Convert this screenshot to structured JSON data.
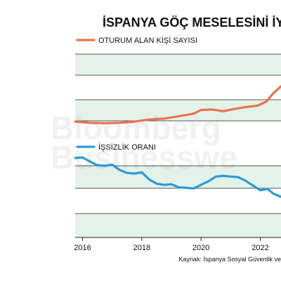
{
  "chart_data": {
    "type": "line",
    "title": "İSPANYA GÖÇ MESELESİNİ İY",
    "source": "Kaynak: İspanya Sosyal Güvenlik ve",
    "watermark": [
      "Bloomberg",
      "Businesswe"
    ],
    "xlim": [
      2015.75,
      2022.7
    ],
    "x_ticks": [
      2016,
      2018,
      2020,
      2022
    ],
    "x_tick_labels": [
      "2016",
      "2018",
      "2020",
      "2022"
    ],
    "panels": [
      {
        "id": "residents",
        "legend": "OTURUM ALAN KİŞİ SAYISI",
        "color": "#E8744B",
        "x": [
          2015.75,
          2016.25,
          2016.75,
          2017.25,
          2017.75,
          2018.25,
          2018.75,
          2019.25,
          2019.75,
          2020.0,
          2020.4,
          2020.75,
          2021.1,
          2021.5,
          2021.9,
          2022.2,
          2022.45,
          2022.7
        ],
        "y": [
          0.5,
          0.2,
          0.1,
          0.2,
          0.5,
          1.0,
          1.2,
          1.8,
          2.4,
          3.3,
          3.4,
          3.0,
          3.5,
          4.0,
          4.3,
          5.3,
          7.4,
          9.0
        ]
      },
      {
        "id": "unemployment",
        "legend": "İŞSİZLİK ORANI",
        "color": "#2C9AD6",
        "x": [
          2015.75,
          2016.0,
          2016.25,
          2016.5,
          2016.75,
          2017.0,
          2017.25,
          2017.5,
          2017.75,
          2018.0,
          2018.25,
          2018.5,
          2018.75,
          2019.0,
          2019.25,
          2019.5,
          2019.75,
          2020.0,
          2020.25,
          2020.5,
          2020.75,
          2021.0,
          2021.25,
          2021.5,
          2021.75,
          2022.0,
          2022.25,
          2022.45,
          2022.7
        ],
        "y": [
          8.6,
          8.7,
          8.0,
          7.4,
          7.3,
          7.5,
          6.6,
          6.1,
          6.0,
          6.2,
          5.0,
          4.3,
          4.1,
          4.2,
          3.7,
          3.6,
          3.5,
          4.1,
          4.7,
          5.5,
          5.6,
          5.5,
          5.4,
          4.8,
          4.0,
          3.2,
          3.4,
          2.6,
          2.1
        ]
      }
    ]
  }
}
